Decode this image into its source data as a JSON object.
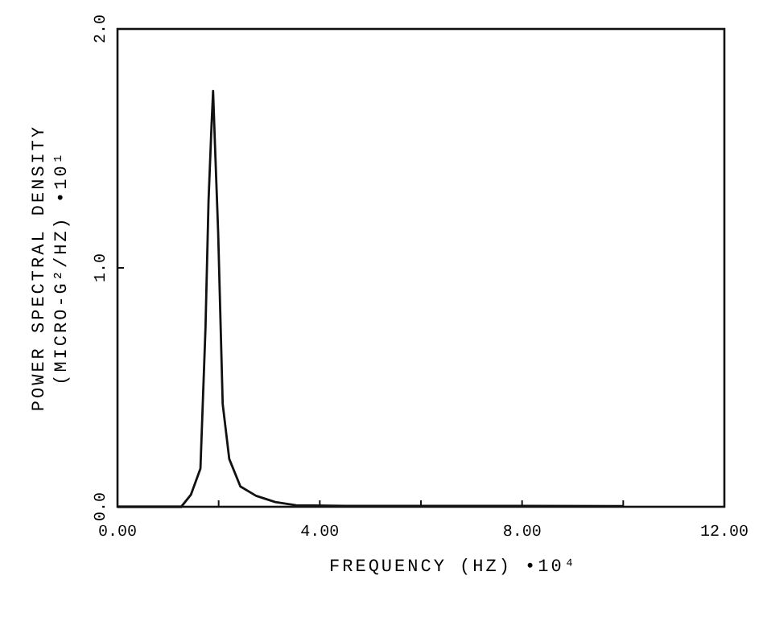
{
  "chart_data": {
    "type": "line",
    "xlabel": "FREQUENCY  (HZ)  •10⁴",
    "ylabel": "POWER SPECTRAL DENSITY\n(MICRO-G²/HZ)   •10¹",
    "x": [
      0,
      1.0,
      1.26,
      1.45,
      1.64,
      1.74,
      1.8,
      1.86,
      1.89,
      1.93,
      1.99,
      2.08,
      2.21,
      2.43,
      2.74,
      3.12,
      3.53,
      4.5,
      6,
      8,
      10
    ],
    "series": [
      {
        "color": "#111111",
        "values": [
          0,
          0,
          0,
          0.05,
          0.16,
          0.75,
          1.28,
          1.6,
          1.74,
          1.5,
          1.15,
          0.43,
          0.2,
          0.085,
          0.046,
          0.02,
          0.006,
          0.004,
          0.004,
          0.004,
          0.003
        ]
      }
    ],
    "xlim": [
      0,
      12
    ],
    "ylim": [
      0,
      2
    ],
    "xticks": [
      {
        "value": 0,
        "label": "0.00"
      },
      {
        "value": 2,
        "label": null
      },
      {
        "value": 4,
        "label": "4.00"
      },
      {
        "value": 6,
        "label": null
      },
      {
        "value": 8,
        "label": "8.00"
      },
      {
        "value": 10,
        "label": null
      },
      {
        "value": 12,
        "label": "12.00"
      }
    ],
    "yticks": [
      {
        "value": 0,
        "label": "0.0"
      },
      {
        "value": 1,
        "label": "1.0"
      },
      {
        "value": 2,
        "label": "2.0"
      }
    ],
    "grid": false,
    "marker": "none",
    "line_style": "solid"
  }
}
